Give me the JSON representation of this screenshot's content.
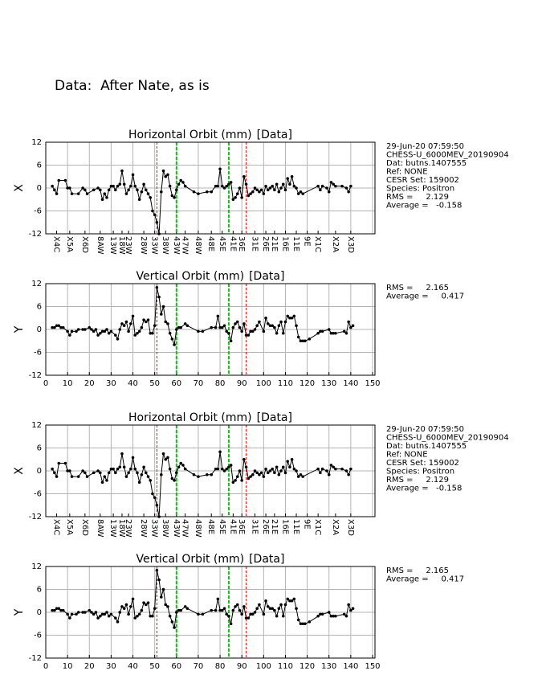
{
  "header": {
    "title": "Data:  After Nate, as is"
  },
  "chart_data": [
    {
      "type": "line",
      "title": "Horizontal Orbit (mm)",
      "title_tag": "[Data]",
      "ylabel": "X",
      "color": "#000000",
      "ylim": [
        -12,
        12
      ],
      "yticks": [
        -12,
        -6,
        0,
        6,
        12
      ],
      "xlim": [
        0,
        150
      ],
      "xgrid": [
        0,
        10,
        20,
        30,
        40,
        50,
        60,
        70,
        80,
        90,
        100,
        110,
        120,
        130,
        140,
        150
      ],
      "xticks": [
        {
          "value": 5,
          "label": "X4C"
        },
        {
          "value": 11,
          "label": "X5A"
        },
        {
          "value": 18,
          "label": "X6D"
        },
        {
          "value": 25,
          "label": "8AW"
        },
        {
          "value": 31,
          "label": "13W"
        },
        {
          "value": 35,
          "label": "18W"
        },
        {
          "value": 38,
          "label": "23W"
        },
        {
          "value": 45,
          "label": "28W"
        },
        {
          "value": 50,
          "label": "33W"
        },
        {
          "value": 55,
          "label": "38W"
        },
        {
          "value": 60,
          "label": "43W"
        },
        {
          "value": 64,
          "label": "47W"
        },
        {
          "value": 70,
          "label": "48W"
        },
        {
          "value": 76,
          "label": "48E"
        },
        {
          "value": 81,
          "label": "45E"
        },
        {
          "value": 86,
          "label": "41E"
        },
        {
          "value": 90,
          "label": "36E"
        },
        {
          "value": 96,
          "label": "31E"
        },
        {
          "value": 101,
          "label": "26E"
        },
        {
          "value": 105,
          "label": "21E"
        },
        {
          "value": 110,
          "label": "16E"
        },
        {
          "value": 115,
          "label": "11E"
        },
        {
          "value": 120,
          "label": "9E"
        },
        {
          "value": 125,
          "label": "X1C"
        },
        {
          "value": 133,
          "label": "X2A"
        },
        {
          "value": 140,
          "label": "X3D"
        }
      ],
      "vlines": [
        {
          "x": 51,
          "color": "#ff0000"
        },
        {
          "x": 60,
          "color": "#00cc00"
        },
        {
          "x": 84,
          "color": "#00cc00"
        },
        {
          "x": 92,
          "color": "#ff0000"
        }
      ],
      "info": [
        "29-Jun-20 07:59:50",
        "CHESS-U_6000MEV_20190904",
        "Dat: butns.1407555",
        "Ref: NONE",
        "CESR Set: 159002",
        "Species: Positron",
        "RMS =     2.129",
        "Average =   -0.158"
      ],
      "x": [
        3,
        4,
        5,
        6,
        9,
        10,
        11,
        12,
        15,
        17,
        18,
        19,
        22,
        24,
        25,
        26,
        27,
        28,
        29,
        30,
        31,
        32,
        33,
        34,
        35,
        36,
        37,
        38,
        39,
        40,
        41,
        42,
        43,
        44,
        45,
        46,
        47,
        48,
        49,
        50,
        51,
        52,
        53,
        54,
        55,
        56,
        57,
        58,
        59,
        60,
        61,
        62,
        63,
        64,
        68,
        70,
        74,
        76,
        78,
        79,
        80,
        81,
        82,
        83,
        84,
        85,
        86,
        87,
        88,
        89,
        90,
        91,
        92,
        93,
        94,
        95,
        96,
        97,
        98,
        99,
        100,
        101,
        102,
        103,
        104,
        105,
        106,
        107,
        108,
        109,
        110,
        111,
        112,
        113,
        114,
        115,
        116,
        117,
        118,
        125,
        126,
        127,
        129,
        130,
        131,
        132,
        133,
        136,
        138,
        139,
        140
      ],
      "values": [
        0.5,
        -0.5,
        -1.5,
        2,
        2,
        0,
        0,
        -1.5,
        -1.5,
        0,
        -0.5,
        -1.5,
        -0.5,
        0,
        -0.5,
        -3,
        -1.5,
        -2.5,
        -0.5,
        0.5,
        0.5,
        -0.5,
        0.5,
        1,
        4.5,
        1,
        -1.5,
        -0.5,
        0.5,
        3.5,
        0.5,
        -0.5,
        -3,
        -1,
        1,
        -0.5,
        -1.5,
        -2.5,
        -6,
        -7,
        -9,
        -12,
        -1,
        4.5,
        3,
        3.5,
        0.5,
        -2,
        -2.5,
        -0.5,
        1,
        2,
        1.5,
        0.5,
        -1,
        -1.5,
        -1,
        -1,
        0.5,
        0.5,
        5,
        0.5,
        0,
        0.5,
        1,
        1.5,
        -3,
        -2.5,
        -1.5,
        0,
        -2.5,
        3,
        1,
        -2,
        -1.5,
        -1,
        0,
        -0.5,
        -1,
        -0.5,
        -1.5,
        0.5,
        -0.5,
        0,
        0.5,
        -0.5,
        1,
        -1,
        0,
        1,
        -0.5,
        2.5,
        1,
        3,
        0.5,
        0,
        -1.5,
        -1,
        -1.5,
        0.5,
        -0.5,
        0.5,
        0,
        -1,
        1.5,
        1,
        0.5,
        0.5,
        0,
        -1,
        0.5
      ]
    },
    {
      "type": "line",
      "title": "Vertical Orbit (mm)",
      "title_tag": "[Data]",
      "ylabel": "Y",
      "color": "#000000",
      "ylim": [
        -12,
        12
      ],
      "yticks": [
        -12,
        -6,
        0,
        6,
        12
      ],
      "xlim": [
        0,
        150
      ],
      "xgrid": [
        0,
        10,
        20,
        30,
        40,
        50,
        60,
        70,
        80,
        90,
        100,
        110,
        120,
        130,
        140,
        150
      ],
      "xticks": [
        0,
        10,
        20,
        30,
        40,
        50,
        60,
        70,
        80,
        90,
        100,
        110,
        120,
        130,
        140,
        150
      ],
      "vlines": [
        {
          "x": 51,
          "color": "#ff0000"
        },
        {
          "x": 60,
          "color": "#00cc00"
        },
        {
          "x": 84,
          "color": "#00cc00"
        },
        {
          "x": 92,
          "color": "#ff0000"
        }
      ],
      "info": [
        "RMS =     2.165",
        "Average =     0.417"
      ],
      "x": [
        3,
        4,
        5,
        6,
        7,
        8,
        10,
        11,
        12,
        14,
        15,
        17,
        18,
        20,
        21,
        22,
        23,
        24,
        25,
        26,
        27,
        28,
        29,
        30,
        32,
        33,
        34,
        35,
        36,
        37,
        38,
        39,
        40,
        41,
        42,
        43,
        44,
        45,
        46,
        47,
        48,
        49,
        50,
        51,
        52,
        53,
        54,
        55,
        56,
        57,
        58,
        59,
        60,
        61,
        62,
        64,
        65,
        70,
        72,
        76,
        78,
        79,
        80,
        81,
        82,
        83,
        84,
        85,
        86,
        87,
        88,
        89,
        90,
        91,
        92,
        93,
        94,
        95,
        96,
        97,
        98,
        100,
        101,
        102,
        103,
        104,
        105,
        106,
        107,
        108,
        109,
        110,
        111,
        112,
        113,
        114,
        115,
        116,
        117,
        118,
        119,
        121,
        125,
        126,
        127,
        130,
        131,
        132,
        133,
        137,
        138,
        139,
        140,
        141
      ],
      "values": [
        0.5,
        0.5,
        1,
        1,
        0.5,
        0.5,
        -0.5,
        -1.5,
        -0.5,
        -0.5,
        0,
        0,
        0,
        0.5,
        0,
        -0.5,
        0,
        -1.5,
        -1,
        -0.5,
        -0.5,
        0,
        -1,
        -0.5,
        -1.5,
        -2.5,
        0,
        1.5,
        1,
        2,
        -0.5,
        1.5,
        3.5,
        -1.5,
        -1,
        -0.5,
        0.5,
        2.5,
        2,
        2.5,
        -1,
        -1,
        1,
        11,
        8.5,
        4,
        6,
        2,
        1.5,
        -1,
        -2.5,
        -4,
        0,
        0.5,
        0.5,
        1.5,
        1,
        -0.5,
        -0.5,
        0.5,
        0.5,
        3.5,
        0.5,
        0.5,
        1,
        -0.5,
        -1,
        -3,
        0.5,
        1.5,
        2,
        0.5,
        -0.5,
        1.5,
        -1.5,
        -1.5,
        -0.5,
        -0.5,
        0,
        1,
        2,
        -0.5,
        3,
        1.5,
        1,
        1,
        0.5,
        -1,
        1,
        2,
        -1,
        2,
        3.5,
        3,
        3,
        3.5,
        1,
        -2,
        -3,
        -3,
        -3,
        -2.5,
        -1,
        -0.5,
        -0.5,
        0,
        -1,
        -1,
        -1,
        -0.5,
        -1,
        2,
        0.5,
        1
      ]
    },
    {
      "type": "line",
      "title": "Horizontal Orbit (mm)",
      "title_tag": "[Data]",
      "ylabel": "X",
      "color": "#000000",
      "ylim": [
        -12,
        12
      ],
      "yticks": [
        -12,
        -6,
        0,
        6,
        12
      ],
      "xlim": [
        0,
        150
      ],
      "xgrid": [
        0,
        10,
        20,
        30,
        40,
        50,
        60,
        70,
        80,
        90,
        100,
        110,
        120,
        130,
        140,
        150
      ],
      "xticks": [
        {
          "value": 5,
          "label": "X4C"
        },
        {
          "value": 11,
          "label": "X5A"
        },
        {
          "value": 18,
          "label": "X6D"
        },
        {
          "value": 25,
          "label": "8AW"
        },
        {
          "value": 31,
          "label": "13W"
        },
        {
          "value": 35,
          "label": "18W"
        },
        {
          "value": 38,
          "label": "23W"
        },
        {
          "value": 45,
          "label": "28W"
        },
        {
          "value": 50,
          "label": "33W"
        },
        {
          "value": 55,
          "label": "38W"
        },
        {
          "value": 60,
          "label": "43W"
        },
        {
          "value": 64,
          "label": "47W"
        },
        {
          "value": 70,
          "label": "48W"
        },
        {
          "value": 76,
          "label": "48E"
        },
        {
          "value": 81,
          "label": "45E"
        },
        {
          "value": 86,
          "label": "41E"
        },
        {
          "value": 90,
          "label": "36E"
        },
        {
          "value": 96,
          "label": "31E"
        },
        {
          "value": 101,
          "label": "26E"
        },
        {
          "value": 105,
          "label": "21E"
        },
        {
          "value": 110,
          "label": "16E"
        },
        {
          "value": 115,
          "label": "11E"
        },
        {
          "value": 120,
          "label": "9E"
        },
        {
          "value": 125,
          "label": "X1C"
        },
        {
          "value": 133,
          "label": "X2A"
        },
        {
          "value": 140,
          "label": "X3D"
        }
      ],
      "vlines": [
        {
          "x": 51,
          "color": "#ff0000"
        },
        {
          "x": 60,
          "color": "#00cc00"
        },
        {
          "x": 84,
          "color": "#00cc00"
        },
        {
          "x": 92,
          "color": "#ff0000"
        }
      ],
      "info": [
        "29-Jun-20 07:59:50",
        "CHESS-U_6000MEV_20190904",
        "Dat: butns.1407555",
        "Ref: NONE",
        "CESR Set: 159002",
        "Species: Positron",
        "RMS =     2.129",
        "Average =   -0.158"
      ],
      "x": [
        3,
        4,
        5,
        6,
        9,
        10,
        11,
        12,
        15,
        17,
        18,
        19,
        22,
        24,
        25,
        26,
        27,
        28,
        29,
        30,
        31,
        32,
        33,
        34,
        35,
        36,
        37,
        38,
        39,
        40,
        41,
        42,
        43,
        44,
        45,
        46,
        47,
        48,
        49,
        50,
        51,
        52,
        53,
        54,
        55,
        56,
        57,
        58,
        59,
        60,
        61,
        62,
        63,
        64,
        68,
        70,
        74,
        76,
        78,
        79,
        80,
        81,
        82,
        83,
        84,
        85,
        86,
        87,
        88,
        89,
        90,
        91,
        92,
        93,
        94,
        95,
        96,
        97,
        98,
        99,
        100,
        101,
        102,
        103,
        104,
        105,
        106,
        107,
        108,
        109,
        110,
        111,
        112,
        113,
        114,
        115,
        116,
        117,
        118,
        125,
        126,
        127,
        129,
        130,
        131,
        132,
        133,
        136,
        138,
        139,
        140
      ],
      "values": [
        0.5,
        -0.5,
        -1.5,
        2,
        2,
        0,
        0,
        -1.5,
        -1.5,
        0,
        -0.5,
        -1.5,
        -0.5,
        0,
        -0.5,
        -3,
        -1.5,
        -2.5,
        -0.5,
        0.5,
        0.5,
        -0.5,
        0.5,
        1,
        4.5,
        1,
        -1.5,
        -0.5,
        0.5,
        3.5,
        0.5,
        -0.5,
        -3,
        -1,
        1,
        -0.5,
        -1.5,
        -2.5,
        -6,
        -7,
        -9,
        -12,
        -1,
        4.5,
        3,
        3.5,
        0.5,
        -2,
        -2.5,
        -0.5,
        1,
        2,
        1.5,
        0.5,
        -1,
        -1.5,
        -1,
        -1,
        0.5,
        0.5,
        5,
        0.5,
        0,
        0.5,
        1,
        1.5,
        -3,
        -2.5,
        -1.5,
        0,
        -2.5,
        3,
        1,
        -2,
        -1.5,
        -1,
        0,
        -0.5,
        -1,
        -0.5,
        -1.5,
        0.5,
        -0.5,
        0,
        0.5,
        -0.5,
        1,
        -1,
        0,
        1,
        -0.5,
        2.5,
        1,
        3,
        0.5,
        0,
        -1.5,
        -1,
        -1.5,
        0.5,
        -0.5,
        0.5,
        0,
        -1,
        1.5,
        1,
        0.5,
        0.5,
        0,
        -1,
        0.5
      ]
    },
    {
      "type": "line",
      "title": "Vertical Orbit (mm)",
      "title_tag": "[Data]",
      "ylabel": "Y",
      "color": "#000000",
      "ylim": [
        -12,
        12
      ],
      "yticks": [
        -12,
        -6,
        0,
        6,
        12
      ],
      "xlim": [
        0,
        150
      ],
      "xgrid": [
        0,
        10,
        20,
        30,
        40,
        50,
        60,
        70,
        80,
        90,
        100,
        110,
        120,
        130,
        140,
        150
      ],
      "xticks": [
        0,
        10,
        20,
        30,
        40,
        50,
        60,
        70,
        80,
        90,
        100,
        110,
        120,
        130,
        140,
        150
      ],
      "vlines": [
        {
          "x": 51,
          "color": "#ff0000"
        },
        {
          "x": 60,
          "color": "#00cc00"
        },
        {
          "x": 84,
          "color": "#00cc00"
        },
        {
          "x": 92,
          "color": "#ff0000"
        }
      ],
      "info": [
        "RMS =     2.165",
        "Average =     0.417"
      ],
      "x": [
        3,
        4,
        5,
        6,
        7,
        8,
        10,
        11,
        12,
        14,
        15,
        17,
        18,
        20,
        21,
        22,
        23,
        24,
        25,
        26,
        27,
        28,
        29,
        30,
        32,
        33,
        34,
        35,
        36,
        37,
        38,
        39,
        40,
        41,
        42,
        43,
        44,
        45,
        46,
        47,
        48,
        49,
        50,
        51,
        52,
        53,
        54,
        55,
        56,
        57,
        58,
        59,
        60,
        61,
        62,
        64,
        65,
        70,
        72,
        76,
        78,
        79,
        80,
        81,
        82,
        83,
        84,
        85,
        86,
        87,
        88,
        89,
        90,
        91,
        92,
        93,
        94,
        95,
        96,
        97,
        98,
        100,
        101,
        102,
        103,
        104,
        105,
        106,
        107,
        108,
        109,
        110,
        111,
        112,
        113,
        114,
        115,
        116,
        117,
        118,
        119,
        121,
        125,
        126,
        127,
        130,
        131,
        132,
        133,
        137,
        138,
        139,
        140,
        141
      ],
      "values": [
        0.5,
        0.5,
        1,
        1,
        0.5,
        0.5,
        -0.5,
        -1.5,
        -0.5,
        -0.5,
        0,
        0,
        0,
        0.5,
        0,
        -0.5,
        0,
        -1.5,
        -1,
        -0.5,
        -0.5,
        0,
        -1,
        -0.5,
        -1.5,
        -2.5,
        0,
        1.5,
        1,
        2,
        -0.5,
        1.5,
        3.5,
        -1.5,
        -1,
        -0.5,
        0.5,
        2.5,
        2,
        2.5,
        -1,
        -1,
        1,
        11,
        8.5,
        4,
        6,
        2,
        1.5,
        -1,
        -2.5,
        -4,
        0,
        0.5,
        0.5,
        1.5,
        1,
        -0.5,
        -0.5,
        0.5,
        0.5,
        3.5,
        0.5,
        0.5,
        1,
        -0.5,
        -1,
        -3,
        0.5,
        1.5,
        2,
        0.5,
        -0.5,
        1.5,
        -1.5,
        -1.5,
        -0.5,
        -0.5,
        0,
        1,
        2,
        -0.5,
        3,
        1.5,
        1,
        1,
        0.5,
        -1,
        1,
        2,
        -1,
        2,
        3.5,
        3,
        3,
        3.5,
        1,
        -2,
        -3,
        -3,
        -3,
        -2.5,
        -1,
        -0.5,
        -0.5,
        0,
        -1,
        -1,
        -1,
        -0.5,
        -1,
        2,
        0.5,
        1
      ]
    }
  ]
}
